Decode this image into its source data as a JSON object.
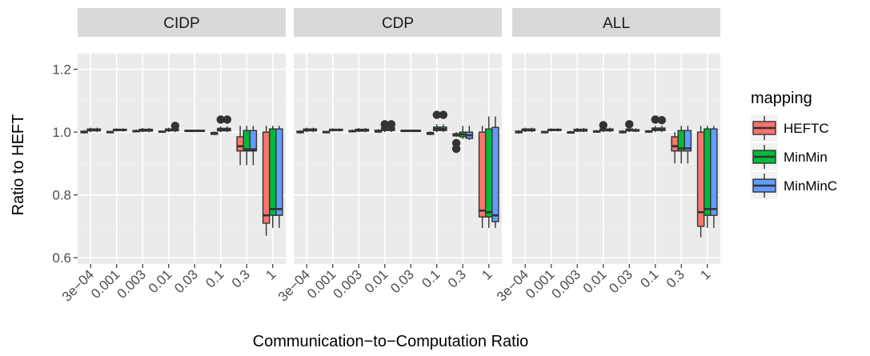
{
  "chart_data": {
    "type": "boxplot",
    "xlabel": "Communication−to−Computation Ratio",
    "ylabel": "Ratio to HEFT",
    "ylim": [
      0.58,
      1.25
    ],
    "yticks": [
      0.6,
      0.8,
      1.0,
      1.2
    ],
    "ytick_labels": [
      "0.6",
      "0.8",
      "1.0",
      "1.2"
    ],
    "categories": [
      "3e−04",
      "0.001",
      "0.003",
      "0.01",
      "0.03",
      "0.1",
      "0.3",
      "1"
    ],
    "legend": {
      "title": "mapping",
      "position": "right",
      "entries": [
        {
          "name": "HEFTC",
          "color": "#F8766D"
        },
        {
          "name": "MinMin",
          "color": "#00BA38"
        },
        {
          "name": "MinMinC",
          "color": "#619CFF"
        }
      ]
    },
    "grid": true,
    "panels": [
      {
        "title": "CIDP",
        "boxes": [
          {
            "category": "3e−04",
            "series": "HEFTC",
            "stats": [
              0.995,
              0.998,
              1.0,
              1.003,
              1.006
            ],
            "outliers": []
          },
          {
            "category": "3e−04",
            "series": "MinMin",
            "stats": [
              1.0,
              1.004,
              1.007,
              1.01,
              1.014
            ],
            "outliers": []
          },
          {
            "category": "3e−04",
            "series": "MinMinC",
            "stats": [
              1.0,
              1.004,
              1.007,
              1.01,
              1.014
            ],
            "outliers": []
          },
          {
            "category": "0.001",
            "series": "HEFTC",
            "stats": [
              0.996,
              0.998,
              1.0,
              1.002,
              1.004
            ],
            "outliers": []
          },
          {
            "category": "0.001",
            "series": "MinMin",
            "stats": [
              1.002,
              1.005,
              1.007,
              1.009,
              1.012
            ],
            "outliers": []
          },
          {
            "category": "0.001",
            "series": "MinMinC",
            "stats": [
              1.002,
              1.005,
              1.007,
              1.009,
              1.012
            ],
            "outliers": []
          },
          {
            "category": "0.003",
            "series": "HEFTC",
            "stats": [
              0.999,
              1.001,
              1.003,
              1.005,
              1.008
            ],
            "outliers": []
          },
          {
            "category": "0.003",
            "series": "MinMin",
            "stats": [
              1.0,
              1.003,
              1.006,
              1.009,
              1.013
            ],
            "outliers": []
          },
          {
            "category": "0.003",
            "series": "MinMinC",
            "stats": [
              1.0,
              1.003,
              1.006,
              1.009,
              1.013
            ],
            "outliers": []
          },
          {
            "category": "0.01",
            "series": "HEFTC",
            "stats": [
              0.998,
              1.0,
              1.001,
              1.003,
              1.005
            ],
            "outliers": []
          },
          {
            "category": "0.01",
            "series": "MinMin",
            "stats": [
              1.0,
              1.004,
              1.007,
              1.01,
              1.014
            ],
            "outliers": []
          },
          {
            "category": "0.01",
            "series": "MinMinC",
            "stats": [
              1.0,
              1.004,
              1.007,
              1.01,
              1.014
            ],
            "outliers": [
              1.02
            ]
          },
          {
            "category": "0.03",
            "series": "HEFTC",
            "stats": [
              1.0,
              1.002,
              1.004,
              1.006,
              1.008
            ],
            "outliers": []
          },
          {
            "category": "0.03",
            "series": "MinMin",
            "stats": [
              1.0,
              1.002,
              1.004,
              1.006,
              1.008
            ],
            "outliers": []
          },
          {
            "category": "0.03",
            "series": "MinMinC",
            "stats": [
              1.0,
              1.002,
              1.004,
              1.006,
              1.008
            ],
            "outliers": []
          },
          {
            "category": "0.1",
            "series": "HEFTC",
            "stats": [
              0.99,
              0.993,
              0.996,
              0.999,
              1.002
            ],
            "outliers": []
          },
          {
            "category": "0.1",
            "series": "MinMin",
            "stats": [
              1.0,
              1.004,
              1.007,
              1.012,
              1.018
            ],
            "outliers": [
              1.04
            ]
          },
          {
            "category": "0.1",
            "series": "MinMinC",
            "stats": [
              1.0,
              1.004,
              1.007,
              1.012,
              1.018
            ],
            "outliers": [
              1.04
            ]
          },
          {
            "category": "0.3",
            "series": "HEFTC",
            "stats": [
              0.895,
              0.94,
              0.955,
              0.985,
              1.02
            ],
            "outliers": []
          },
          {
            "category": "0.3",
            "series": "MinMin",
            "stats": [
              0.895,
              0.94,
              0.945,
              1.005,
              1.02
            ],
            "outliers": []
          },
          {
            "category": "0.3",
            "series": "MinMinC",
            "stats": [
              0.895,
              0.94,
              0.945,
              1.005,
              1.02
            ],
            "outliers": []
          },
          {
            "category": "1",
            "series": "HEFTC",
            "stats": [
              0.67,
              0.71,
              0.735,
              1.0,
              1.02
            ],
            "outliers": []
          },
          {
            "category": "1",
            "series": "MinMin",
            "stats": [
              0.695,
              0.735,
              0.755,
              1.01,
              1.02
            ],
            "outliers": []
          },
          {
            "category": "1",
            "series": "MinMinC",
            "stats": [
              0.695,
              0.735,
              0.755,
              1.01,
              1.02
            ],
            "outliers": []
          }
        ]
      },
      {
        "title": "CDP",
        "boxes": [
          {
            "category": "3e−04",
            "series": "HEFTC",
            "stats": [
              0.995,
              0.998,
              1.0,
              1.003,
              1.006
            ],
            "outliers": []
          },
          {
            "category": "3e−04",
            "series": "MinMin",
            "stats": [
              1.0,
              1.004,
              1.007,
              1.01,
              1.014
            ],
            "outliers": []
          },
          {
            "category": "3e−04",
            "series": "MinMinC",
            "stats": [
              1.0,
              1.004,
              1.007,
              1.01,
              1.014
            ],
            "outliers": []
          },
          {
            "category": "0.001",
            "series": "HEFTC",
            "stats": [
              0.996,
              0.998,
              1.0,
              1.002,
              1.004
            ],
            "outliers": []
          },
          {
            "category": "0.001",
            "series": "MinMin",
            "stats": [
              1.002,
              1.005,
              1.007,
              1.009,
              1.012
            ],
            "outliers": []
          },
          {
            "category": "0.001",
            "series": "MinMinC",
            "stats": [
              1.002,
              1.005,
              1.007,
              1.009,
              1.012
            ],
            "outliers": []
          },
          {
            "category": "0.003",
            "series": "HEFTC",
            "stats": [
              0.999,
              1.001,
              1.003,
              1.005,
              1.008
            ],
            "outliers": []
          },
          {
            "category": "0.003",
            "series": "MinMin",
            "stats": [
              1.0,
              1.003,
              1.006,
              1.009,
              1.013
            ],
            "outliers": []
          },
          {
            "category": "0.003",
            "series": "MinMinC",
            "stats": [
              1.0,
              1.003,
              1.006,
              1.009,
              1.013
            ],
            "outliers": []
          },
          {
            "category": "0.01",
            "series": "HEFTC",
            "stats": [
              0.998,
              1.0,
              1.003,
              1.006,
              1.009
            ],
            "outliers": []
          },
          {
            "category": "0.01",
            "series": "MinMin",
            "stats": [
              1.0,
              1.005,
              1.009,
              1.014,
              1.02
            ],
            "outliers": [
              1.025
            ]
          },
          {
            "category": "0.01",
            "series": "MinMinC",
            "stats": [
              1.0,
              1.005,
              1.009,
              1.014,
              1.02
            ],
            "outliers": [
              1.025
            ]
          },
          {
            "category": "0.03",
            "series": "HEFTC",
            "stats": [
              1.0,
              1.002,
              1.004,
              1.006,
              1.008
            ],
            "outliers": []
          },
          {
            "category": "0.03",
            "series": "MinMin",
            "stats": [
              1.0,
              1.002,
              1.004,
              1.006,
              1.008
            ],
            "outliers": []
          },
          {
            "category": "0.03",
            "series": "MinMinC",
            "stats": [
              1.0,
              1.002,
              1.004,
              1.006,
              1.008
            ],
            "outliers": []
          },
          {
            "category": "0.1",
            "series": "HEFTC",
            "stats": [
              0.99,
              0.993,
              0.996,
              0.999,
              1.002
            ],
            "outliers": []
          },
          {
            "category": "0.1",
            "series": "MinMin",
            "stats": [
              1.0,
              1.005,
              1.01,
              1.016,
              1.025
            ],
            "outliers": [
              1.055
            ]
          },
          {
            "category": "0.1",
            "series": "MinMinC",
            "stats": [
              1.0,
              1.005,
              1.01,
              1.016,
              1.025
            ],
            "outliers": [
              1.055
            ]
          },
          {
            "category": "0.3",
            "series": "HEFTC",
            "stats": [
              0.985,
              0.988,
              0.99,
              0.995,
              1.0
            ],
            "outliers": [
              0.947,
              0.965
            ]
          },
          {
            "category": "0.3",
            "series": "MinMin",
            "stats": [
              0.978,
              0.985,
              0.993,
              1.0,
              1.02
            ],
            "outliers": []
          },
          {
            "category": "0.3",
            "series": "MinMinC",
            "stats": [
              0.975,
              0.98,
              0.99,
              1.0,
              1.02
            ],
            "outliers": []
          },
          {
            "category": "1",
            "series": "HEFTC",
            "stats": [
              0.695,
              0.73,
              0.75,
              1.0,
              1.02
            ],
            "outliers": []
          },
          {
            "category": "1",
            "series": "MinMin",
            "stats": [
              0.695,
              0.73,
              0.745,
              1.01,
              1.05
            ],
            "outliers": []
          },
          {
            "category": "1",
            "series": "MinMinC",
            "stats": [
              0.695,
              0.715,
              0.735,
              1.015,
              1.05
            ],
            "outliers": []
          }
        ]
      },
      {
        "title": "ALL",
        "boxes": [
          {
            "category": "3e−04",
            "series": "HEFTC",
            "stats": [
              0.995,
              0.998,
              1.0,
              1.003,
              1.006
            ],
            "outliers": []
          },
          {
            "category": "3e−04",
            "series": "MinMin",
            "stats": [
              1.0,
              1.004,
              1.007,
              1.01,
              1.014
            ],
            "outliers": []
          },
          {
            "category": "3e−04",
            "series": "MinMinC",
            "stats": [
              1.0,
              1.004,
              1.007,
              1.01,
              1.014
            ],
            "outliers": []
          },
          {
            "category": "0.001",
            "series": "HEFTC",
            "stats": [
              0.996,
              0.998,
              1.0,
              1.002,
              1.004
            ],
            "outliers": []
          },
          {
            "category": "0.001",
            "series": "MinMin",
            "stats": [
              1.002,
              1.005,
              1.007,
              1.009,
              1.012
            ],
            "outliers": []
          },
          {
            "category": "0.001",
            "series": "MinMinC",
            "stats": [
              1.002,
              1.005,
              1.007,
              1.009,
              1.012
            ],
            "outliers": []
          },
          {
            "category": "0.003",
            "series": "HEFTC",
            "stats": [
              0.995,
              0.997,
              0.999,
              1.001,
              1.004
            ],
            "outliers": []
          },
          {
            "category": "0.003",
            "series": "MinMin",
            "stats": [
              1.0,
              1.003,
              1.006,
              1.009,
              1.013
            ],
            "outliers": []
          },
          {
            "category": "0.003",
            "series": "MinMinC",
            "stats": [
              1.0,
              1.003,
              1.006,
              1.009,
              1.013
            ],
            "outliers": []
          },
          {
            "category": "0.01",
            "series": "HEFTC",
            "stats": [
              0.998,
              1.0,
              1.002,
              1.004,
              1.006
            ],
            "outliers": []
          },
          {
            "category": "0.01",
            "series": "MinMin",
            "stats": [
              1.0,
              1.004,
              1.007,
              1.01,
              1.014
            ],
            "outliers": [
              1.022
            ]
          },
          {
            "category": "0.01",
            "series": "MinMinC",
            "stats": [
              1.0,
              1.004,
              1.007,
              1.01,
              1.014
            ],
            "outliers": []
          },
          {
            "category": "0.03",
            "series": "HEFTC",
            "stats": [
              0.995,
              0.998,
              1.0,
              1.003,
              1.006
            ],
            "outliers": []
          },
          {
            "category": "0.03",
            "series": "MinMin",
            "stats": [
              1.0,
              1.004,
              1.007,
              1.01,
              1.014
            ],
            "outliers": [
              1.025
            ]
          },
          {
            "category": "0.03",
            "series": "MinMinC",
            "stats": [
              1.0,
              1.003,
              1.005,
              1.008,
              1.012
            ],
            "outliers": []
          },
          {
            "category": "0.1",
            "series": "HEFTC",
            "stats": [
              0.998,
              1.0,
              1.002,
              1.004,
              1.006
            ],
            "outliers": []
          },
          {
            "category": "0.1",
            "series": "MinMin",
            "stats": [
              1.0,
              1.005,
              1.008,
              1.013,
              1.02
            ],
            "outliers": [
              1.04
            ]
          },
          {
            "category": "0.1",
            "series": "MinMinC",
            "stats": [
              1.0,
              1.005,
              1.008,
              1.013,
              1.02
            ],
            "outliers": [
              1.038
            ]
          },
          {
            "category": "0.3",
            "series": "HEFTC",
            "stats": [
              0.9,
              0.94,
              0.955,
              0.985,
              1.0
            ],
            "outliers": []
          },
          {
            "category": "0.3",
            "series": "MinMin",
            "stats": [
              0.9,
              0.94,
              0.948,
              1.005,
              1.02
            ],
            "outliers": []
          },
          {
            "category": "0.3",
            "series": "MinMinC",
            "stats": [
              0.9,
              0.94,
              0.948,
              1.005,
              1.02
            ],
            "outliers": []
          },
          {
            "category": "1",
            "series": "HEFTC",
            "stats": [
              0.665,
              0.7,
              0.745,
              1.0,
              1.02
            ],
            "outliers": []
          },
          {
            "category": "1",
            "series": "MinMin",
            "stats": [
              0.695,
              0.735,
              0.755,
              1.01,
              1.02
            ],
            "outliers": []
          },
          {
            "category": "1",
            "series": "MinMinC",
            "stats": [
              0.695,
              0.735,
              0.755,
              1.01,
              1.02
            ],
            "outliers": []
          }
        ]
      }
    ]
  }
}
